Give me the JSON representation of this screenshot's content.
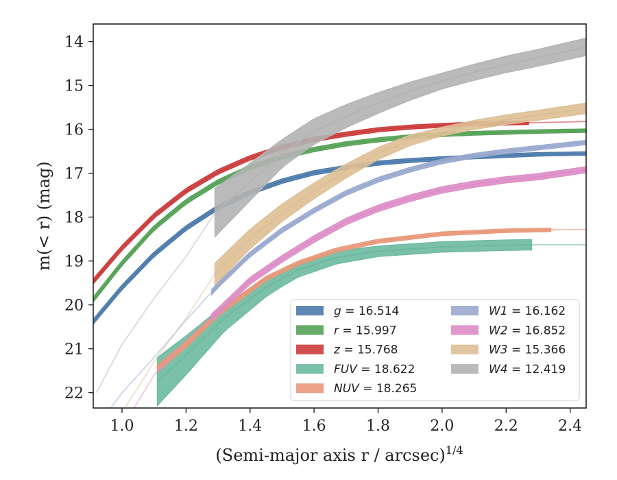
{
  "chart_data": {
    "type": "line",
    "xlabel": "(Semi-major axis r / arcsec)",
    "xlabel_superscript": "1/4",
    "ylabel": "m(< r) (mag)",
    "xlim": [
      0.91,
      2.45
    ],
    "ylim": [
      22.35,
      13.6
    ],
    "y_inverted": true,
    "grid": false,
    "legend_placement": "lower-right",
    "x_ticks": [
      1.0,
      1.2,
      1.4,
      1.6,
      1.8,
      2.0,
      2.2,
      2.4
    ],
    "x_tick_labels": [
      "1.0",
      "1.2",
      "1.4",
      "1.6",
      "1.8",
      "2.0",
      "2.2",
      "2.4"
    ],
    "y_ticks": [
      14,
      15,
      16,
      17,
      18,
      19,
      20,
      21,
      22
    ],
    "y_tick_labels": [
      "14",
      "15",
      "16",
      "17",
      "18",
      "19",
      "20",
      "21",
      "22"
    ],
    "series": [
      {
        "name": "g",
        "legend_value": "= 16.514",
        "color": "#4c7bab",
        "points": [
          [
            0.9,
            20.47
          ],
          [
            1.0,
            19.6
          ],
          [
            1.1,
            18.85
          ],
          [
            1.2,
            18.25
          ],
          [
            1.3,
            17.78
          ],
          [
            1.4,
            17.44
          ],
          [
            1.5,
            17.18
          ],
          [
            1.6,
            16.99
          ],
          [
            1.7,
            16.87
          ],
          [
            1.8,
            16.77
          ],
          [
            1.9,
            16.71
          ],
          [
            2.0,
            16.67
          ],
          [
            2.1,
            16.63
          ],
          [
            2.2,
            16.6
          ],
          [
            2.3,
            16.57
          ],
          [
            2.45,
            16.55
          ]
        ],
        "band": [
          [
            0.9,
            0.06
          ],
          [
            2.45,
            0.04
          ]
        ],
        "fade_after": 2.45
      },
      {
        "name": "r",
        "legend_value": "= 15.997",
        "color": "#55a257",
        "points": [
          [
            0.9,
            19.97
          ],
          [
            1.0,
            19.05
          ],
          [
            1.1,
            18.25
          ],
          [
            1.2,
            17.65
          ],
          [
            1.3,
            17.2
          ],
          [
            1.4,
            16.87
          ],
          [
            1.5,
            16.63
          ],
          [
            1.6,
            16.46
          ],
          [
            1.7,
            16.33
          ],
          [
            1.8,
            16.24
          ],
          [
            1.9,
            16.17
          ],
          [
            2.0,
            16.12
          ],
          [
            2.1,
            16.09
          ],
          [
            2.2,
            16.07
          ],
          [
            2.3,
            16.05
          ],
          [
            2.45,
            16.03
          ]
        ],
        "band": [
          [
            0.9,
            0.06
          ],
          [
            2.45,
            0.04
          ]
        ],
        "fade_after": 2.45
      },
      {
        "name": "z",
        "legend_value": "= 15.768",
        "color": "#cc3b3b",
        "points": [
          [
            0.9,
            19.55
          ],
          [
            1.0,
            18.7
          ],
          [
            1.1,
            17.97
          ],
          [
            1.2,
            17.4
          ],
          [
            1.3,
            16.97
          ],
          [
            1.4,
            16.65
          ],
          [
            1.5,
            16.41
          ],
          [
            1.6,
            16.23
          ],
          [
            1.7,
            16.11
          ],
          [
            1.8,
            16.01
          ],
          [
            1.9,
            15.95
          ],
          [
            2.0,
            15.91
          ],
          [
            2.1,
            15.88
          ],
          [
            2.2,
            15.86
          ],
          [
            2.27,
            15.85
          ],
          [
            2.35,
            15.84
          ],
          [
            2.45,
            15.82
          ]
        ],
        "band": [
          [
            0.9,
            0.06
          ],
          [
            2.45,
            0.04
          ]
        ],
        "fade_after": 2.27
      },
      {
        "name": "FUV",
        "legend_value": "= 18.622",
        "color": "#6db9a0",
        "points": [
          [
            1.11,
            21.75
          ],
          [
            1.2,
            21.15
          ],
          [
            1.32,
            20.3
          ],
          [
            1.45,
            19.6
          ],
          [
            1.55,
            19.2
          ],
          [
            1.67,
            18.92
          ],
          [
            1.8,
            18.78
          ],
          [
            2.0,
            18.68
          ],
          [
            2.2,
            18.64
          ],
          [
            2.28,
            18.63
          ],
          [
            2.45,
            18.63
          ]
        ],
        "band": [
          [
            1.11,
            0.55
          ],
          [
            1.32,
            0.3
          ],
          [
            1.5,
            0.18
          ],
          [
            1.8,
            0.12
          ],
          [
            2.28,
            0.12
          ]
        ],
        "fade_after": 2.28
      },
      {
        "name": "NUV",
        "legend_value": "= 18.265",
        "color": "#e9987a",
        "points": [
          [
            1.11,
            21.45
          ],
          [
            1.2,
            20.9
          ],
          [
            1.3,
            20.2
          ],
          [
            1.45,
            19.4
          ],
          [
            1.55,
            19.05
          ],
          [
            1.67,
            18.75
          ],
          [
            1.8,
            18.55
          ],
          [
            2.0,
            18.38
          ],
          [
            2.2,
            18.31
          ],
          [
            2.34,
            18.29
          ],
          [
            2.45,
            18.28
          ]
        ],
        "band": [
          [
            1.11,
            0.08
          ],
          [
            1.5,
            0.05
          ],
          [
            2.34,
            0.04
          ]
        ],
        "fade_after": 2.34
      },
      {
        "name": "W1",
        "legend_value": "= 16.162",
        "color": "#9aa9cf",
        "points": [
          [
            0.92,
            22.8
          ],
          [
            1.0,
            22.0
          ],
          [
            1.1,
            21.2
          ],
          [
            1.2,
            20.35
          ],
          [
            1.3,
            19.55
          ],
          [
            1.4,
            18.85
          ],
          [
            1.5,
            18.3
          ],
          [
            1.6,
            17.85
          ],
          [
            1.7,
            17.45
          ],
          [
            1.8,
            17.15
          ],
          [
            1.9,
            16.92
          ],
          [
            2.0,
            16.73
          ],
          [
            2.1,
            16.6
          ],
          [
            2.2,
            16.5
          ],
          [
            2.3,
            16.42
          ],
          [
            2.45,
            16.3
          ]
        ],
        "band": [
          [
            1.28,
            0.06
          ],
          [
            2.45,
            0.05
          ]
        ],
        "fade_before": 1.28,
        "fade_after": 2.45
      },
      {
        "name": "W2",
        "legend_value": "= 16.852",
        "color": "#dd8cc6",
        "points": [
          [
            1.0,
            22.8
          ],
          [
            1.1,
            21.6
          ],
          [
            1.2,
            20.8
          ],
          [
            1.3,
            20.15
          ],
          [
            1.4,
            19.45
          ],
          [
            1.5,
            18.95
          ],
          [
            1.6,
            18.5
          ],
          [
            1.7,
            18.1
          ],
          [
            1.8,
            17.8
          ],
          [
            1.9,
            17.57
          ],
          [
            2.0,
            17.38
          ],
          [
            2.1,
            17.25
          ],
          [
            2.2,
            17.15
          ],
          [
            2.3,
            17.08
          ],
          [
            2.45,
            16.92
          ]
        ],
        "band": [
          [
            1.28,
            0.08
          ],
          [
            2.45,
            0.07
          ]
        ],
        "fade_before": 1.28,
        "fade_after": 2.45
      },
      {
        "name": "W3",
        "legend_value": "= 15.366",
        "color": "#ddbf95",
        "points": [
          [
            0.97,
            22.8
          ],
          [
            1.1,
            21.3
          ],
          [
            1.2,
            20.3
          ],
          [
            1.29,
            19.3
          ],
          [
            1.4,
            18.5
          ],
          [
            1.5,
            17.9
          ],
          [
            1.6,
            17.4
          ],
          [
            1.7,
            16.95
          ],
          [
            1.8,
            16.55
          ],
          [
            1.9,
            16.25
          ],
          [
            2.0,
            16.05
          ],
          [
            2.1,
            15.9
          ],
          [
            2.2,
            15.78
          ],
          [
            2.3,
            15.68
          ],
          [
            2.45,
            15.52
          ]
        ],
        "band": [
          [
            1.29,
            0.25
          ],
          [
            1.5,
            0.2
          ],
          [
            2.0,
            0.1
          ],
          [
            2.45,
            0.12
          ]
        ],
        "fade_before": 1.29,
        "fade_after": 2.45
      },
      {
        "name": "W4",
        "legend_value": "= 12.419",
        "color": "#b3b3b3",
        "points": [
          [
            0.92,
            22.0
          ],
          [
            1.0,
            20.9
          ],
          [
            1.1,
            19.85
          ],
          [
            1.2,
            18.9
          ],
          [
            1.29,
            17.9
          ],
          [
            1.4,
            17.2
          ],
          [
            1.5,
            16.55
          ],
          [
            1.6,
            16.05
          ],
          [
            1.7,
            15.7
          ],
          [
            1.8,
            15.4
          ],
          [
            1.9,
            15.13
          ],
          [
            2.0,
            14.9
          ],
          [
            2.1,
            14.7
          ],
          [
            2.2,
            14.52
          ],
          [
            2.3,
            14.37
          ],
          [
            2.45,
            14.12
          ]
        ],
        "band": [
          [
            1.29,
            0.55
          ],
          [
            1.5,
            0.32
          ],
          [
            2.0,
            0.18
          ],
          [
            2.45,
            0.2
          ]
        ],
        "fade_before": 1.29,
        "fade_after": 2.45
      }
    ],
    "legend_columns": [
      [
        "g",
        "r",
        "z",
        "FUV",
        "NUV"
      ],
      [
        "W1",
        "W2",
        "W3",
        "W4"
      ]
    ]
  }
}
